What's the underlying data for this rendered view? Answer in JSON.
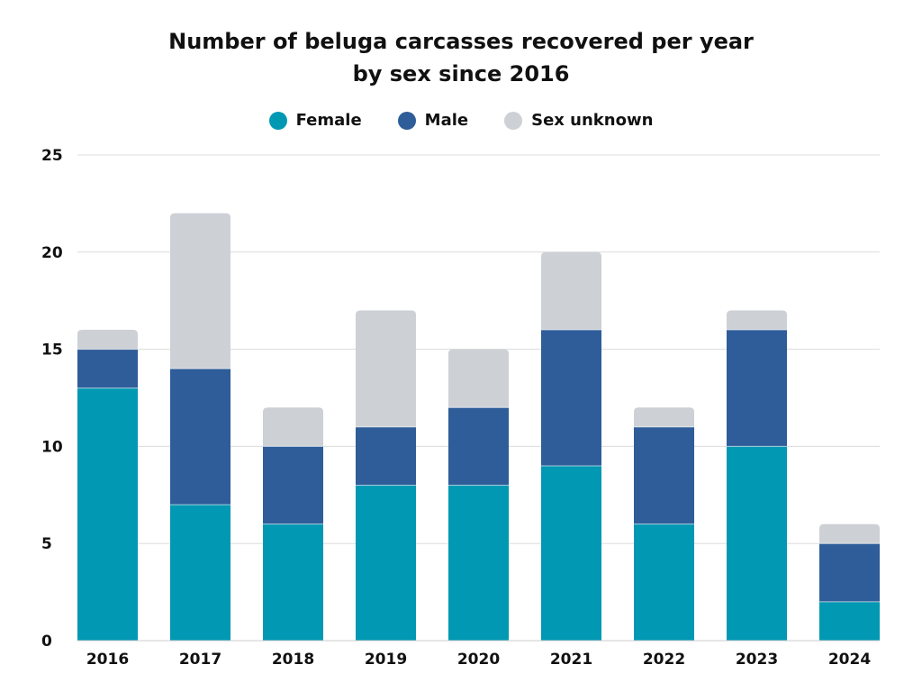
{
  "title_line1": "Number of beluga carcasses recovered per year",
  "title_line2": "by sex since 2016",
  "chart_data": {
    "type": "bar",
    "stacked": true,
    "categories": [
      "2016",
      "2017",
      "2018",
      "2019",
      "2020",
      "2021",
      "2022",
      "2023",
      "2024"
    ],
    "series": [
      {
        "name": "Female",
        "color": "#0098b3",
        "values": [
          13,
          7,
          6,
          8,
          8,
          9,
          6,
          10,
          2
        ]
      },
      {
        "name": "Male",
        "color": "#2e5d99",
        "values": [
          2,
          7,
          4,
          3,
          4,
          7,
          5,
          6,
          3
        ]
      },
      {
        "name": "Sex unknown",
        "color": "#cdd0d5",
        "values": [
          1,
          8,
          2,
          6,
          3,
          4,
          1,
          1,
          1
        ]
      }
    ],
    "ylim": [
      0,
      25
    ],
    "yticks": [
      "0",
      "5",
      "10",
      "15",
      "20",
      "25"
    ],
    "grid": true,
    "legend_position": "top-center"
  }
}
